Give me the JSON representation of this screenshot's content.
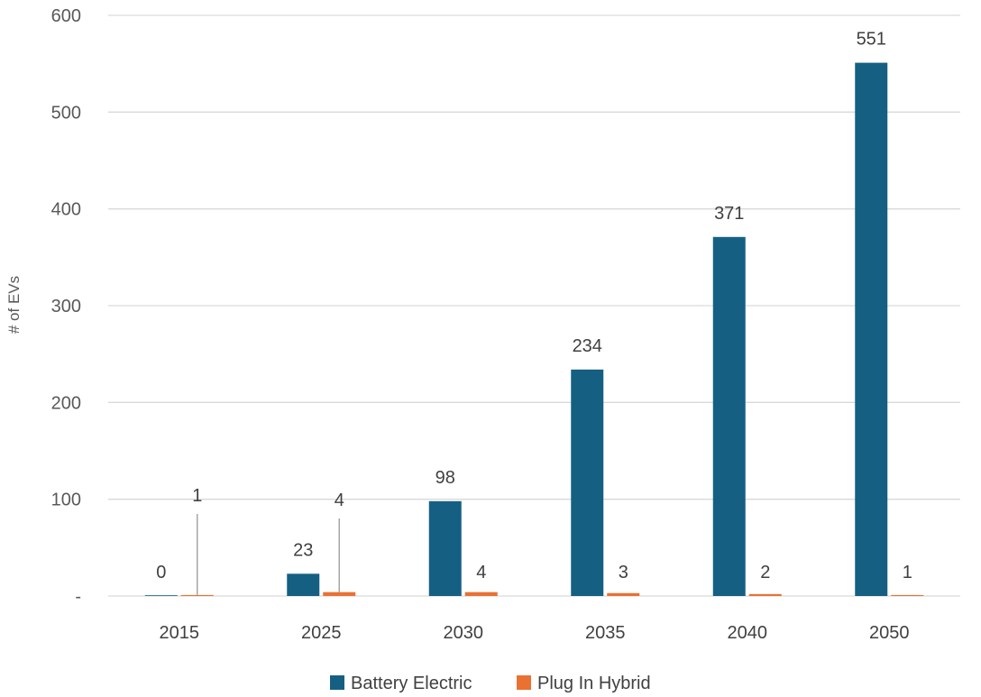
{
  "chart_data": {
    "type": "bar",
    "title": "",
    "xlabel": "",
    "ylabel": "# of EVs",
    "ylim": [
      0,
      600
    ],
    "y_ticks": [
      {
        "value": 0,
        "label": "-"
      },
      {
        "value": 100,
        "label": "100"
      },
      {
        "value": 200,
        "label": "200"
      },
      {
        "value": 300,
        "label": "300"
      },
      {
        "value": 400,
        "label": "400"
      },
      {
        "value": 500,
        "label": "500"
      },
      {
        "value": 600,
        "label": "600"
      }
    ],
    "grid": true,
    "legend_position": "bottom",
    "categories": [
      "2015",
      "2025",
      "2030",
      "2035",
      "2040",
      "2050"
    ],
    "series": [
      {
        "name": "Battery Electric",
        "color": "#156082",
        "values": [
          0,
          23,
          98,
          234,
          371,
          551
        ],
        "labels": [
          "0",
          "23",
          "98",
          "234",
          "371",
          "551"
        ]
      },
      {
        "name": "Plug In Hybrid",
        "color": "#E97132",
        "values": [
          1,
          4,
          4,
          3,
          2,
          1
        ],
        "labels": [
          "1",
          "4",
          "4",
          "3",
          "2",
          "1"
        ]
      }
    ]
  }
}
